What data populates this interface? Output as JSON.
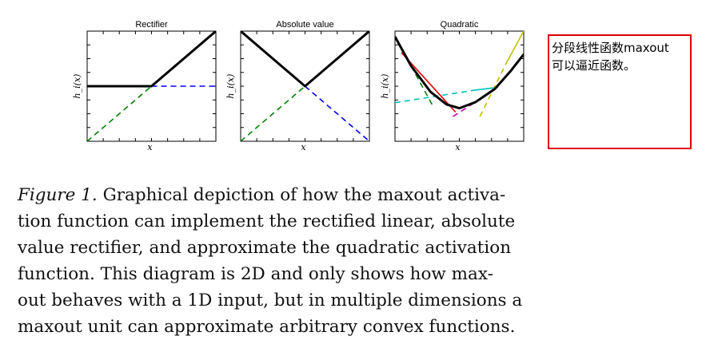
{
  "plots": [
    {
      "title": "Rectifier",
      "ylabel": "h_i(x)",
      "xlabel": "x",
      "lines": [
        {
          "color": "#0000ff",
          "style": "solid",
          "points": [
            [
              -1,
              0
            ],
            [
              0,
              0
            ]
          ]
        },
        {
          "color": "#0000ff",
          "style": "dashed",
          "points": [
            [
              0,
              0
            ],
            [
              1,
              0
            ]
          ]
        },
        {
          "color": "#008000",
          "style": "dashed",
          "points": [
            [
              -1,
              -1
            ],
            [
              0,
              0
            ]
          ]
        },
        {
          "color": "#008000",
          "style": "solid",
          "points": [
            [
              0,
              0
            ],
            [
              1,
              1
            ]
          ]
        },
        {
          "color": "#000000",
          "style": "solid",
          "width": 3,
          "points": [
            [
              -1,
              0
            ],
            [
              0,
              0
            ],
            [
              1,
              1
            ]
          ]
        }
      ]
    },
    {
      "title": "Absolute value",
      "ylabel": "h_i(x)",
      "xlabel": "x",
      "lines": [
        {
          "color": "#0000ff",
          "style": "solid",
          "points": [
            [
              -1,
              1
            ],
            [
              0,
              0
            ]
          ]
        },
        {
          "color": "#0000ff",
          "style": "dashed",
          "points": [
            [
              0,
              0
            ],
            [
              1,
              -1
            ]
          ]
        },
        {
          "color": "#008000",
          "style": "dashed",
          "points": [
            [
              -1,
              -1
            ],
            [
              0,
              0
            ]
          ]
        },
        {
          "color": "#008000",
          "style": "solid",
          "points": [
            [
              0,
              0
            ],
            [
              1,
              1
            ]
          ]
        },
        {
          "color": "#000000",
          "style": "solid",
          "width": 3,
          "points": [
            [
              -1,
              1
            ],
            [
              0,
              0
            ],
            [
              1,
              1
            ]
          ]
        }
      ]
    },
    {
      "title": "Quadratic",
      "ylabel": "h_i(x)",
      "xlabel": "x",
      "lines": [
        {
          "color": "#008000",
          "style": "solid",
          "points": [
            [
              -1,
              0.9
            ],
            [
              -0.75,
              0.37
            ]
          ]
        },
        {
          "color": "#008000",
          "style": "dashed",
          "points": [
            [
              -0.75,
              0.37
            ],
            [
              -0.42,
              -0.34
            ]
          ]
        },
        {
          "color": "#e00000",
          "style": "solid",
          "points": [
            [
              -0.9,
              0.61
            ],
            [
              -0.06,
              -0.47
            ]
          ]
        },
        {
          "color": "#00bfbf",
          "style": "dashed",
          "points": [
            [
              -1,
              -0.3
            ],
            [
              0.25,
              -0.07
            ]
          ]
        },
        {
          "color": "#00bfbf",
          "style": "solid",
          "points": [
            [
              0.25,
              -0.07
            ],
            [
              0.6,
              -0.02
            ]
          ]
        },
        {
          "color": "#c000c0",
          "style": "dashed",
          "points": [
            [
              -0.1,
              -0.55
            ],
            [
              0.25,
              -0.29
            ]
          ]
        },
        {
          "color": "#c000c0",
          "style": "solid",
          "points": [
            [
              0.25,
              -0.29
            ],
            [
              0.6,
              -0.01
            ]
          ]
        },
        {
          "color": "#bfbf00",
          "style": "dashed",
          "points": [
            [
              0.32,
              -0.55
            ],
            [
              0.72,
              0.4
            ]
          ]
        },
        {
          "color": "#bfbf00",
          "style": "solid",
          "points": [
            [
              0.72,
              0.4
            ],
            [
              1,
              1
            ]
          ]
        },
        {
          "color": "#000000",
          "style": "solid",
          "width": 3,
          "points": [
            [
              -1,
              0.9
            ],
            [
              -0.75,
              0.37
            ],
            [
              -0.45,
              -0.1
            ],
            [
              -0.2,
              -0.33
            ],
            [
              0.0,
              -0.4
            ],
            [
              0.25,
              -0.29
            ],
            [
              0.55,
              -0.05
            ],
            [
              0.8,
              0.28
            ],
            [
              1,
              0.58
            ]
          ]
        }
      ]
    }
  ],
  "note": {
    "line1": "分段线性函数maxout",
    "line2": "可以逼近函数。"
  },
  "caption": {
    "label": "Figure 1.",
    "line1_rest": " Graphical depiction of how the maxout activa-",
    "line2": "tion function can implement the rectified linear, absolute",
    "line3": "value rectifier, and approximate the quadratic activation",
    "line4": "function.  This diagram is 2D and only shows how max-",
    "line5": "out behaves with a 1D input, but in multiple dimensions a",
    "line6": "maxout unit can approximate arbitrary convex functions."
  }
}
